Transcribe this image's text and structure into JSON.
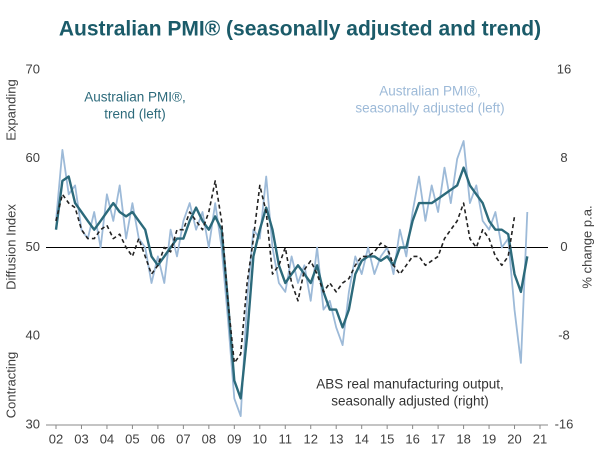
{
  "chart_data": {
    "type": "line",
    "title": "Australian PMI® (seasonally adjusted and trend)",
    "ylabel": "Diffusion Index",
    "ylabel_top": "Expanding",
    "ylabel_bottom": "Contracting",
    "y2label": "% change p.a.",
    "xlim": [
      2002,
      2021
    ],
    "xticks": [
      {
        "value": 2002,
        "label": "02"
      },
      {
        "value": 2003,
        "label": "03"
      },
      {
        "value": 2004,
        "label": "04"
      },
      {
        "value": 2005,
        "label": "05"
      },
      {
        "value": 2006,
        "label": "06"
      },
      {
        "value": 2007,
        "label": "07"
      },
      {
        "value": 2008,
        "label": "08"
      },
      {
        "value": 2009,
        "label": "09"
      },
      {
        "value": 2010,
        "label": "10"
      },
      {
        "value": 2011,
        "label": "11"
      },
      {
        "value": 2012,
        "label": "12"
      },
      {
        "value": 2013,
        "label": "13"
      },
      {
        "value": 2014,
        "label": "14"
      },
      {
        "value": 2015,
        "label": "15"
      },
      {
        "value": 2016,
        "label": "16"
      },
      {
        "value": 2017,
        "label": "17"
      },
      {
        "value": 2018,
        "label": "18"
      },
      {
        "value": 2019,
        "label": "19"
      },
      {
        "value": 2020,
        "label": "20"
      },
      {
        "value": 2021,
        "label": "21"
      }
    ],
    "ylim": [
      30,
      70
    ],
    "yticks": [
      30,
      40,
      50,
      60,
      70
    ],
    "y2lim": [
      -16,
      16
    ],
    "y2ticks": [
      -16,
      -8,
      0,
      8,
      16
    ],
    "reference_line": 50,
    "series": [
      {
        "label": [
          "Australian PMI®,",
          "seasonally adjusted (left)"
        ],
        "color": "#9dbad8",
        "width": 1.8,
        "dashed": false,
        "x": [
          2002,
          2002.25,
          2002.5,
          2002.75,
          2003,
          2003.25,
          2003.5,
          2003.75,
          2004,
          2004.25,
          2004.5,
          2004.75,
          2005,
          2005.25,
          2005.5,
          2005.75,
          2006,
          2006.25,
          2006.5,
          2006.75,
          2007,
          2007.25,
          2007.5,
          2007.75,
          2008,
          2008.25,
          2008.5,
          2008.75,
          2009,
          2009.25,
          2009.5,
          2009.75,
          2010,
          2010.25,
          2010.5,
          2010.75,
          2011,
          2011.25,
          2011.5,
          2011.75,
          2012,
          2012.25,
          2012.5,
          2012.75,
          2013,
          2013.25,
          2013.5,
          2013.75,
          2014,
          2014.25,
          2014.5,
          2014.75,
          2015,
          2015.25,
          2015.5,
          2015.75,
          2016,
          2016.25,
          2016.5,
          2016.75,
          2017,
          2017.25,
          2017.5,
          2017.75,
          2018,
          2018.25,
          2018.5,
          2018.75,
          2019,
          2019.25,
          2019.5,
          2019.75,
          2020,
          2020.25,
          2020.5
        ],
        "values": [
          53,
          61,
          56,
          57,
          52,
          51,
          54,
          50,
          56,
          53,
          57,
          51,
          55,
          51,
          50,
          46,
          49,
          46,
          52,
          49,
          53,
          55,
          52,
          54,
          50,
          55,
          50,
          42,
          33,
          31,
          44,
          52,
          51,
          58,
          50,
          46,
          45,
          49,
          46,
          48,
          44,
          50,
          43,
          44,
          41,
          39,
          45,
          49,
          47,
          50,
          47,
          49,
          50,
          47,
          52,
          49,
          54,
          58,
          53,
          57,
          54,
          59,
          55,
          60,
          62,
          55,
          57,
          53,
          52,
          54,
          50,
          51,
          43,
          37,
          54
        ]
      },
      {
        "label": [
          "Australian PMI®,",
          "trend (left)"
        ],
        "color": "#2c6a7b",
        "width": 2.4,
        "dashed": false,
        "x": [
          2002,
          2002.25,
          2002.5,
          2002.75,
          2003,
          2003.25,
          2003.5,
          2003.75,
          2004,
          2004.25,
          2004.5,
          2004.75,
          2005,
          2005.25,
          2005.5,
          2005.75,
          2006,
          2006.25,
          2006.5,
          2006.75,
          2007,
          2007.25,
          2007.5,
          2007.75,
          2008,
          2008.25,
          2008.5,
          2008.75,
          2009,
          2009.25,
          2009.5,
          2009.75,
          2010,
          2010.25,
          2010.5,
          2010.75,
          2011,
          2011.25,
          2011.5,
          2011.75,
          2012,
          2012.25,
          2012.5,
          2012.75,
          2013,
          2013.25,
          2013.5,
          2013.75,
          2014,
          2014.25,
          2014.5,
          2014.75,
          2015,
          2015.25,
          2015.5,
          2015.75,
          2016,
          2016.25,
          2016.5,
          2016.75,
          2017,
          2017.25,
          2017.5,
          2017.75,
          2018,
          2018.25,
          2018.5,
          2018.75,
          2019,
          2019.25,
          2019.5,
          2019.75,
          2020,
          2020.25,
          2020.5
        ],
        "values": [
          52,
          57.5,
          58,
          55,
          54,
          53,
          52,
          53,
          54,
          55,
          54,
          53.5,
          54,
          53,
          52,
          49,
          48,
          49,
          50,
          51,
          51,
          53,
          54.5,
          53,
          52,
          53.5,
          52,
          44,
          35,
          33,
          40,
          49,
          52,
          54.5,
          52,
          48,
          46,
          47,
          48,
          47,
          46,
          48,
          45,
          43,
          43,
          41,
          43,
          47,
          48.5,
          49,
          49,
          48.5,
          49,
          48,
          50,
          50,
          53,
          55,
          55,
          55,
          55.5,
          56,
          56.5,
          57,
          59,
          57,
          56,
          55,
          53,
          52,
          52,
          51.5,
          47,
          45,
          49
        ]
      },
      {
        "label": [
          "ABS real manufacturing output,",
          "seasonally adjusted (right)"
        ],
        "color": "#222222",
        "width": 1.6,
        "dashed": true,
        "axis": "y2",
        "x": [
          2002,
          2002.25,
          2002.5,
          2002.75,
          2003,
          2003.25,
          2003.5,
          2003.75,
          2004,
          2004.25,
          2004.5,
          2004.75,
          2005,
          2005.25,
          2005.5,
          2005.75,
          2006,
          2006.25,
          2006.5,
          2006.75,
          2007,
          2007.25,
          2007.5,
          2007.75,
          2008,
          2008.25,
          2008.5,
          2008.75,
          2009,
          2009.25,
          2009.5,
          2009.75,
          2010,
          2010.25,
          2010.5,
          2010.75,
          2011,
          2011.25,
          2011.5,
          2011.75,
          2012,
          2012.25,
          2012.5,
          2012.75,
          2013,
          2013.25,
          2013.5,
          2013.75,
          2014,
          2014.25,
          2014.5,
          2014.75,
          2015,
          2015.25,
          2015.5,
          2015.75,
          2016,
          2016.25,
          2016.5,
          2016.75,
          2017,
          2017.25,
          2017.5,
          2017.75,
          2018,
          2018.25,
          2018.5,
          2018.75,
          2019,
          2019.25,
          2019.5,
          2019.75,
          2020
        ],
        "values": [
          2.4,
          4.8,
          4,
          3.6,
          1.6,
          0.8,
          0.8,
          1.6,
          2,
          0.8,
          1.2,
          0,
          -0.8,
          0.8,
          -0.8,
          -2.4,
          -1.6,
          0,
          -0.4,
          1.6,
          1.6,
          3.2,
          2.4,
          1.6,
          3.2,
          6,
          2.4,
          -4.8,
          -10.4,
          -9.6,
          -3.2,
          0.8,
          5.6,
          3.2,
          -2.4,
          -1.6,
          0,
          -3.2,
          -4.8,
          -2,
          -1.2,
          -2.4,
          -4,
          -3.2,
          -4,
          -3.2,
          -2.8,
          -1.6,
          -0.8,
          -0.8,
          -0.4,
          0.4,
          0,
          -1.6,
          -2.4,
          -1.6,
          -0.8,
          -0.8,
          -1.6,
          -1.2,
          -0.8,
          0.8,
          1.6,
          2.4,
          4,
          0.8,
          0,
          1.6,
          0.8,
          -0.8,
          -1.6,
          -0.8,
          2.8
        ]
      }
    ]
  }
}
